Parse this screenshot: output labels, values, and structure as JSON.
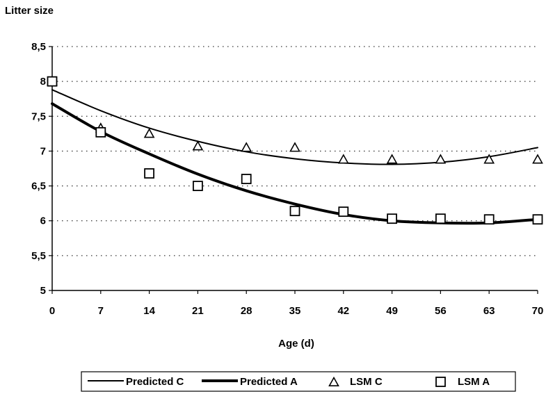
{
  "chart_data": {
    "type": "line",
    "title": "",
    "ylabel": "Litter size",
    "xlabel": "Age  (d)",
    "x_ticks": [
      0,
      7,
      14,
      21,
      28,
      35,
      42,
      49,
      56,
      63,
      70
    ],
    "y_ticks": [
      5,
      5.5,
      6,
      6.5,
      7,
      7.5,
      8,
      8.5
    ],
    "y_tick_labels": [
      "5",
      "5,5",
      "6",
      "6,5",
      "7",
      "7,5",
      "8",
      "8,5"
    ],
    "xlim": [
      0,
      70
    ],
    "ylim": [
      5,
      8.5
    ],
    "grid": "horizontal dotted",
    "legend_placement": "bottom",
    "series": [
      {
        "name": "Predicted C",
        "style": "thin-line",
        "x": [
          0,
          7,
          14,
          21,
          28,
          35,
          42,
          49,
          56,
          63,
          70
        ],
        "y": [
          7.88,
          7.58,
          7.33,
          7.14,
          6.99,
          6.89,
          6.83,
          6.81,
          6.84,
          6.92,
          7.05
        ]
      },
      {
        "name": "Predicted A",
        "style": "thick-line",
        "x": [
          0,
          7,
          14,
          21,
          28,
          35,
          42,
          49,
          56,
          63,
          70
        ],
        "y": [
          7.68,
          7.28,
          6.96,
          6.67,
          6.43,
          6.24,
          6.09,
          6.0,
          5.97,
          5.97,
          6.02
        ]
      },
      {
        "name": "LSM  C",
        "style": "triangle",
        "x": [
          0,
          7,
          14,
          21,
          28,
          35,
          42,
          49,
          56,
          63,
          70
        ],
        "y": [
          8.0,
          7.33,
          7.25,
          7.07,
          7.05,
          7.05,
          6.88,
          6.88,
          6.88,
          6.88,
          6.88
        ]
      },
      {
        "name": "LSM  A",
        "style": "square",
        "x": [
          0,
          7,
          14,
          21,
          28,
          35,
          42,
          49,
          56,
          63,
          70
        ],
        "y": [
          8.0,
          7.27,
          6.68,
          6.5,
          6.6,
          6.14,
          6.13,
          6.03,
          6.03,
          6.02,
          6.02
        ]
      }
    ]
  }
}
